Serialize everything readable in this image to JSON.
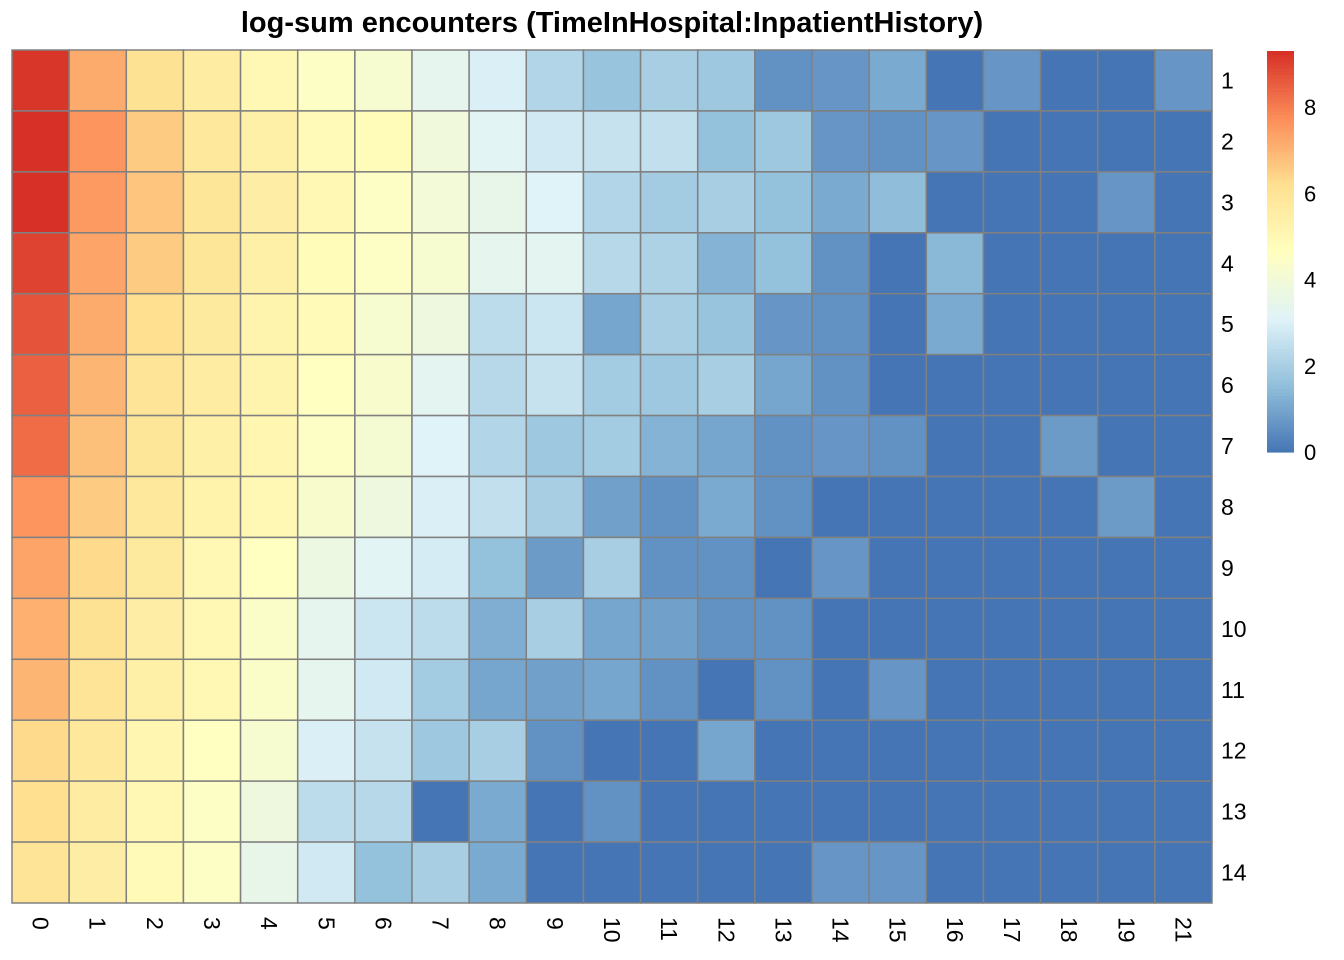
{
  "chart_data": {
    "type": "heatmap",
    "title": "log-sum encounters (TimeInHospital:InpatientHistory)",
    "columns": [
      "0",
      "1",
      "2",
      "3",
      "4",
      "5",
      "6",
      "7",
      "8",
      "9",
      "10",
      "11",
      "12",
      "13",
      "14",
      "15",
      "16",
      "17",
      "18",
      "19",
      "21"
    ],
    "rows": [
      "1",
      "2",
      "3",
      "4",
      "5",
      "6",
      "7",
      "8",
      "9",
      "10",
      "11",
      "12",
      "13",
      "14"
    ],
    "values": [
      [
        9.2,
        7.2,
        6.1,
        5.6,
        5.0,
        4.5,
        4.2,
        3.4,
        3.0,
        2.2,
        1.7,
        2.0,
        1.8,
        0.6,
        0.7,
        1.1,
        0.0,
        0.7,
        0.0,
        0.0,
        0.7
      ],
      [
        9.3,
        7.6,
        6.6,
        5.8,
        5.4,
        4.9,
        4.8,
        3.9,
        3.2,
        2.8,
        2.6,
        2.5,
        1.6,
        1.8,
        0.7,
        0.6,
        0.7,
        0.0,
        0.0,
        0.0,
        0.0
      ],
      [
        9.3,
        7.5,
        6.7,
        5.9,
        5.5,
        5.0,
        4.5,
        4.0,
        3.5,
        3.1,
        2.2,
        1.9,
        2.0,
        1.6,
        1.1,
        1.5,
        0.0,
        0.0,
        0.0,
        0.7,
        0.0
      ],
      [
        9.0,
        7.3,
        6.6,
        5.9,
        5.4,
        4.8,
        4.5,
        4.2,
        3.4,
        3.3,
        2.3,
        2.1,
        1.3,
        1.6,
        0.6,
        0.0,
        1.4,
        0.0,
        0.0,
        0.0,
        0.0
      ],
      [
        8.7,
        7.2,
        6.2,
        5.7,
        5.2,
        4.9,
        4.2,
        3.8,
        2.4,
        2.7,
        1.0,
        2.0,
        1.7,
        0.7,
        0.6,
        0.0,
        1.1,
        0.0,
        0.0,
        0.0,
        0.0
      ],
      [
        8.5,
        7.0,
        6.0,
        5.6,
        5.2,
        4.6,
        4.3,
        3.3,
        2.3,
        2.6,
        1.9,
        1.8,
        2.0,
        1.0,
        0.6,
        0.0,
        0.0,
        0.0,
        0.0,
        0.0,
        0.0
      ],
      [
        8.3,
        6.8,
        5.9,
        5.4,
        5.1,
        4.5,
        4.1,
        3.1,
        2.2,
        1.8,
        1.9,
        1.3,
        1.0,
        0.6,
        0.7,
        0.6,
        0.0,
        0.0,
        0.8,
        0.0,
        0.0
      ],
      [
        7.6,
        6.6,
        5.8,
        5.3,
        5.0,
        4.3,
        3.8,
        3.0,
        2.5,
        2.0,
        0.9,
        0.6,
        1.1,
        0.6,
        0.0,
        0.0,
        0.0,
        0.0,
        0.0,
        0.8,
        0.0
      ],
      [
        7.3,
        6.3,
        5.7,
        5.0,
        4.6,
        3.7,
        3.2,
        2.9,
        1.6,
        0.8,
        2.0,
        0.6,
        0.6,
        0.0,
        0.7,
        0.0,
        0.0,
        0.0,
        0.0,
        0.0,
        0.0
      ],
      [
        7.1,
        6.1,
        5.5,
        5.0,
        4.4,
        3.4,
        2.7,
        2.4,
        1.2,
        2.0,
        1.0,
        0.9,
        0.6,
        0.6,
        0.0,
        0.0,
        0.0,
        0.0,
        0.0,
        0.0,
        0.0
      ],
      [
        7.0,
        6.0,
        5.4,
        5.0,
        4.4,
        3.4,
        2.8,
        1.9,
        1.0,
        0.9,
        1.0,
        0.6,
        0.0,
        0.6,
        0.0,
        0.7,
        0.0,
        0.0,
        0.0,
        0.0,
        0.0
      ],
      [
        6.3,
        5.8,
        5.1,
        4.6,
        4.2,
        3.0,
        2.6,
        1.8,
        2.0,
        0.6,
        0.0,
        0.0,
        1.0,
        0.0,
        0.0,
        0.0,
        0.0,
        0.0,
        0.0,
        0.0,
        0.0
      ],
      [
        6.2,
        5.6,
        5.0,
        4.5,
        3.8,
        2.4,
        2.3,
        0.0,
        1.1,
        0.0,
        0.6,
        0.0,
        0.0,
        0.0,
        0.0,
        0.0,
        0.0,
        0.0,
        0.0,
        0.0,
        0.0
      ],
      [
        6.0,
        5.5,
        4.9,
        4.5,
        3.5,
        2.8,
        1.6,
        2.0,
        1.1,
        0.0,
        0.0,
        0.0,
        0.0,
        0.0,
        0.7,
        0.7,
        0.0,
        0.0,
        0.0,
        0.0,
        0.0
      ]
    ],
    "color_scale": {
      "min": 0,
      "max": 9.3,
      "colors": [
        "#4575B4",
        "#91BFDB",
        "#E0F3F8",
        "#FFFFBF",
        "#FEE090",
        "#FC8D59",
        "#D73027"
      ],
      "legend_ticks": [
        0,
        2,
        4,
        6,
        8
      ]
    },
    "cell_border_color": "#808080",
    "legend_position": "right"
  }
}
